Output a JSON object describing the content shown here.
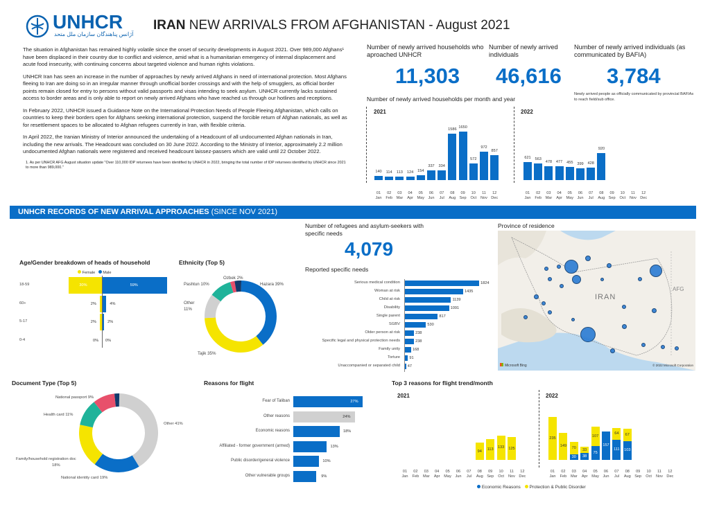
{
  "header": {
    "logo_text": "UNHCR",
    "logo_subtext": "آژانس پناهندگان سازمان ملل متحد",
    "title_bold": "IRAN",
    "title_rest": " NEW ARRIVALS FROM AFGHANISTAN - August 2021"
  },
  "intro": {
    "p1": "The situation in Afghanistan has remained highly volatile since the onset of security developments in August 2021. Over 989,000 Afghans¹ have been displaced in their country due to conflict and violence, amid what is a humanitarian emergency of internal displacement and acute food insecurity, with continuing concerns about targeted violence and human rights violations.",
    "p2": "UNHCR Iran has seen an increase in the number of approaches by newly arrived Afghans in need of international protection. Most Afghans fleeing to Iran are doing so in an irregular manner through unofficial border crossings and with the help of smugglers, as official border points remain closed for entry to persons without valid passports and visas intending to seek asylum. UNHCR currently lacks sustained access to border areas and is only able to report on newly arrived Afghans who have reached us through our hotlines and receptions.",
    "p3": "In February 2022, UNHCR issued a Guidance Note on the International Protection Needs of People Fleeing Afghanistan, which calls on countries to keep their borders open for Afghans seeking international protection, suspend the forcible return of Afghan nationals, as well as for resettlement spaces to be allocated to Afghan refugees currently in Iran, with flexible criteria.",
    "p4": "In April 2022, the Iranian Ministry of Interior announced the undertaking of a Headcount of all undocumented Afghan nationals in Iran, including the new arrivals. The Headcount was concluded on 30 June 2022. According to the Ministry of Interior, approximately 2.2 million undocumented Afghan nationals were registered and received headcount laissez-passers which are valid until 22 October 2022.",
    "footnote": "1. As per UNHCR AFG August situation update \"Over 110,000 IDP returnees have been identified by UNHCR in 2022, bringing the total number of IDP returnees identified by UNHCR since 2021 to more than 989,000.\""
  },
  "stats": {
    "households_label": "Number of newly arrived households who aproached UNHCR",
    "households_value": "11,303",
    "individuals_label": "Number of newly arrived individuals",
    "individuals_value": "46,616",
    "bafia_label": "Number of newly arrived individuals (as communicated by BAFIA)",
    "bafia_value": "3,784",
    "bafia_note": "Newly arrived people as officially communicated by provincial BAFIAs to reach field/sub office."
  },
  "households_chart": {
    "title": "Number of newly arrived households per month and year",
    "year1": "2021",
    "year2": "2022"
  },
  "section_bar": {
    "bold": "UNHCR RECORDS OF NEW ARRIVAL APPROACHES",
    "light": " (SINCE NOV 2021)"
  },
  "age_gender": {
    "title": "Age/Gender breakdown of heads of household",
    "legend_female": "Female",
    "legend_male": "Male"
  },
  "ethnicity": {
    "title": "Ethnicity (Top 5)"
  },
  "specific_needs": {
    "title": "Number of refugees and asylum-seekers with specific needs",
    "value": "4,079",
    "chart_title": "Reported specific needs"
  },
  "province": {
    "title": "Province of residence",
    "country_label": "IRAN",
    "neighbor_label": "AFG",
    "attribution": "© 2022 Microsoft Corporation",
    "ms_logo": "Microsoft Bing"
  },
  "document_type": {
    "title": "Document Type (Top 5)"
  },
  "reasons": {
    "title": "Reasons for flight"
  },
  "trend": {
    "title": "Top 3 reasons for flight trend/month",
    "year1": "2021",
    "year2": "2022",
    "legend_econ": "Economic Reasons",
    "legend_prot": "Protection & Public Disorder"
  },
  "colors": {
    "blue": "#0a6ec7",
    "yellow": "#f5e400",
    "grey": "#d0d0d0",
    "teal": "#1fb39a",
    "pink": "#e8506b",
    "navy": "#123a6b"
  },
  "chart_data": [
    {
      "type": "bar",
      "title": "Number of newly arrived households per month and year",
      "series": [
        {
          "name": "2021",
          "categories": [
            "01 Jan",
            "02 Feb",
            "03 Mar",
            "04 Apr",
            "05 May",
            "06 Jun",
            "07 Jul",
            "08 Aug",
            "09 Sep",
            "10 Oct",
            "11 Nov",
            "12 Dec"
          ],
          "values": [
            140,
            114,
            113,
            124,
            154,
            337,
            334,
            1586,
            1650,
            572,
            972,
            857
          ]
        },
        {
          "name": "2022",
          "categories": [
            "01 Jan",
            "02 Feb",
            "03 Mar",
            "04 Apr",
            "05 May",
            "06 Jun",
            "07 Jul",
            "08 Aug",
            "09 Sep",
            "10 Oct",
            "11 Nov",
            "12 Dec"
          ],
          "values": [
            621,
            563,
            478,
            477,
            455,
            399,
            428,
            920,
            null,
            null,
            null,
            null
          ]
        }
      ]
    },
    {
      "type": "bar",
      "title": "Age/Gender breakdown of heads of household",
      "categories": [
        "18-59",
        "60+",
        "5-17",
        "0-4"
      ],
      "series": [
        {
          "name": "Female",
          "values": [
            "30%",
            "2%",
            "2%",
            "0%"
          ]
        },
        {
          "name": "Male",
          "values": [
            "59%",
            "4%",
            "2%",
            "0%"
          ]
        }
      ]
    },
    {
      "type": "pie",
      "title": "Ethnicity (Top 5)",
      "labels": [
        "Hazara 39%",
        "Tajik 35%",
        "Other 11%",
        "Pashtun 10%",
        "Ozbek 2%"
      ],
      "values": [
        39,
        35,
        11,
        10,
        2
      ],
      "colors": [
        "#0a6ec7",
        "#f5e400",
        "#d0d0d0",
        "#1fb39a",
        "#e8506b"
      ]
    },
    {
      "type": "bar",
      "title": "Reported specific needs",
      "categories": [
        "Serious medical condition",
        "Woman at risk",
        "Child at risk",
        "Disability",
        "Single parent",
        "SGBV",
        "Older person at risk",
        "Specific legal and physical protection needs",
        "Family unity",
        "Torture",
        "Unaccompanied or separated child"
      ],
      "values": [
        1824,
        1435,
        1139,
        1091,
        817,
        530,
        238,
        238,
        168,
        91,
        47
      ]
    },
    {
      "type": "pie",
      "title": "Document Type (Top 5)",
      "labels": [
        "Other 41%",
        "National identity card 19%",
        "Family/household registration doc 18%",
        "Health card 11%",
        "National passport 9%"
      ],
      "values": [
        41,
        19,
        18,
        11,
        9
      ],
      "colors": [
        "#d0d0d0",
        "#0a6ec7",
        "#f5e400",
        "#1fb39a",
        "#e8506b"
      ]
    },
    {
      "type": "bar",
      "title": "Reasons for flight",
      "categories": [
        "Fear of Taliban",
        "Other reasons",
        "Economic reasons",
        "Affiliated - former government (armed)",
        "Public disorder/general violence",
        "Other vulnerable groups"
      ],
      "values": [
        "27%",
        "24%",
        "18%",
        "13%",
        "10%",
        "9%"
      ]
    },
    {
      "type": "bar",
      "title": "Top 3 reasons for flight trend/month",
      "categories": [
        "01 Jan",
        "02 Feb",
        "03 Mar",
        "04 Apr",
        "05 May",
        "06 Jun",
        "07 Jul",
        "08 Aug",
        "09 Sep",
        "10 Oct",
        "11 Nov",
        "12 Dec"
      ],
      "series": [
        {
          "name": "Protection & Public Disorder 2021",
          "values": [
            null,
            null,
            null,
            null,
            null,
            null,
            null,
            94,
            113,
            133,
            125,
            null
          ]
        },
        {
          "name": "Economic Reasons 2022",
          "values": [
            null,
            null,
            30,
            38,
            75,
            157,
            111,
            103,
            null,
            null,
            null,
            null
          ]
        },
        {
          "name": "Protection & Public Disorder 2022",
          "values": [
            235,
            149,
            70,
            33,
            107,
            null,
            64,
            67,
            null,
            null,
            null,
            null
          ]
        }
      ]
    }
  ],
  "ui_text": {
    "hh_2021_values": [
      "140",
      "114",
      "113",
      "124",
      "154",
      "337",
      "334",
      "1586",
      "1650",
      "572",
      "972",
      "857"
    ],
    "hh_2022_values": [
      "621",
      "563",
      "478",
      "477",
      "455",
      "399",
      "428",
      "920"
    ],
    "months_num": [
      "01",
      "02",
      "03",
      "04",
      "05",
      "06",
      "07",
      "08",
      "09",
      "10",
      "11",
      "12"
    ],
    "months_name": [
      "Jan",
      "Feb",
      "Mar",
      "Apr",
      "May",
      "Jun",
      "Jul",
      "Aug",
      "Sep",
      "Oct",
      "Nov",
      "Dec"
    ],
    "age_rows": [
      "18-59",
      "60+",
      "5-17",
      "0-4"
    ],
    "age_female": [
      "30%",
      "2%",
      "2%",
      "0%"
    ],
    "age_male": [
      "59%",
      "4%",
      "2%",
      "0%"
    ],
    "eth_labels": [
      "Ozbek 2%",
      "Pashtun 10%",
      "Other",
      "11%",
      "Hazara 39%",
      "Tajik 35%"
    ],
    "needs_labels": [
      "Serious medical condition",
      "Woman at risk",
      "Child at risk",
      "Disability",
      "Single parent",
      "SGBV",
      "Older person at risk",
      "Specific legal and physical protection needs",
      "Family unity",
      "Torture",
      "Unaccompanied or separated child"
    ],
    "needs_values": [
      "1824",
      "1435",
      "1139",
      "1091",
      "817",
      "530",
      "238",
      "238",
      "168",
      "91",
      "47"
    ],
    "doc_labels": [
      "National passport 9%",
      "Health card 11%",
      "Other 41%",
      "Family/household registration doc",
      "18%",
      "National identity card 19%"
    ],
    "reason_labels": [
      "Fear of Taliban",
      "Other reasons",
      "Economic reasons",
      "Affiliated - former government (armed)",
      "Public disorder/general violence",
      "Other vulnerable groups"
    ],
    "reason_values": [
      "27%",
      "24%",
      "18%",
      "13%",
      "10%",
      "9%"
    ],
    "trend_2021_prot": [
      "94",
      "113",
      "133",
      "125"
    ],
    "trend_2022_labels": [
      "235",
      "149",
      "70",
      "30",
      "33",
      "38",
      "107",
      "75",
      "157",
      "64",
      "111",
      "67",
      "103"
    ]
  }
}
